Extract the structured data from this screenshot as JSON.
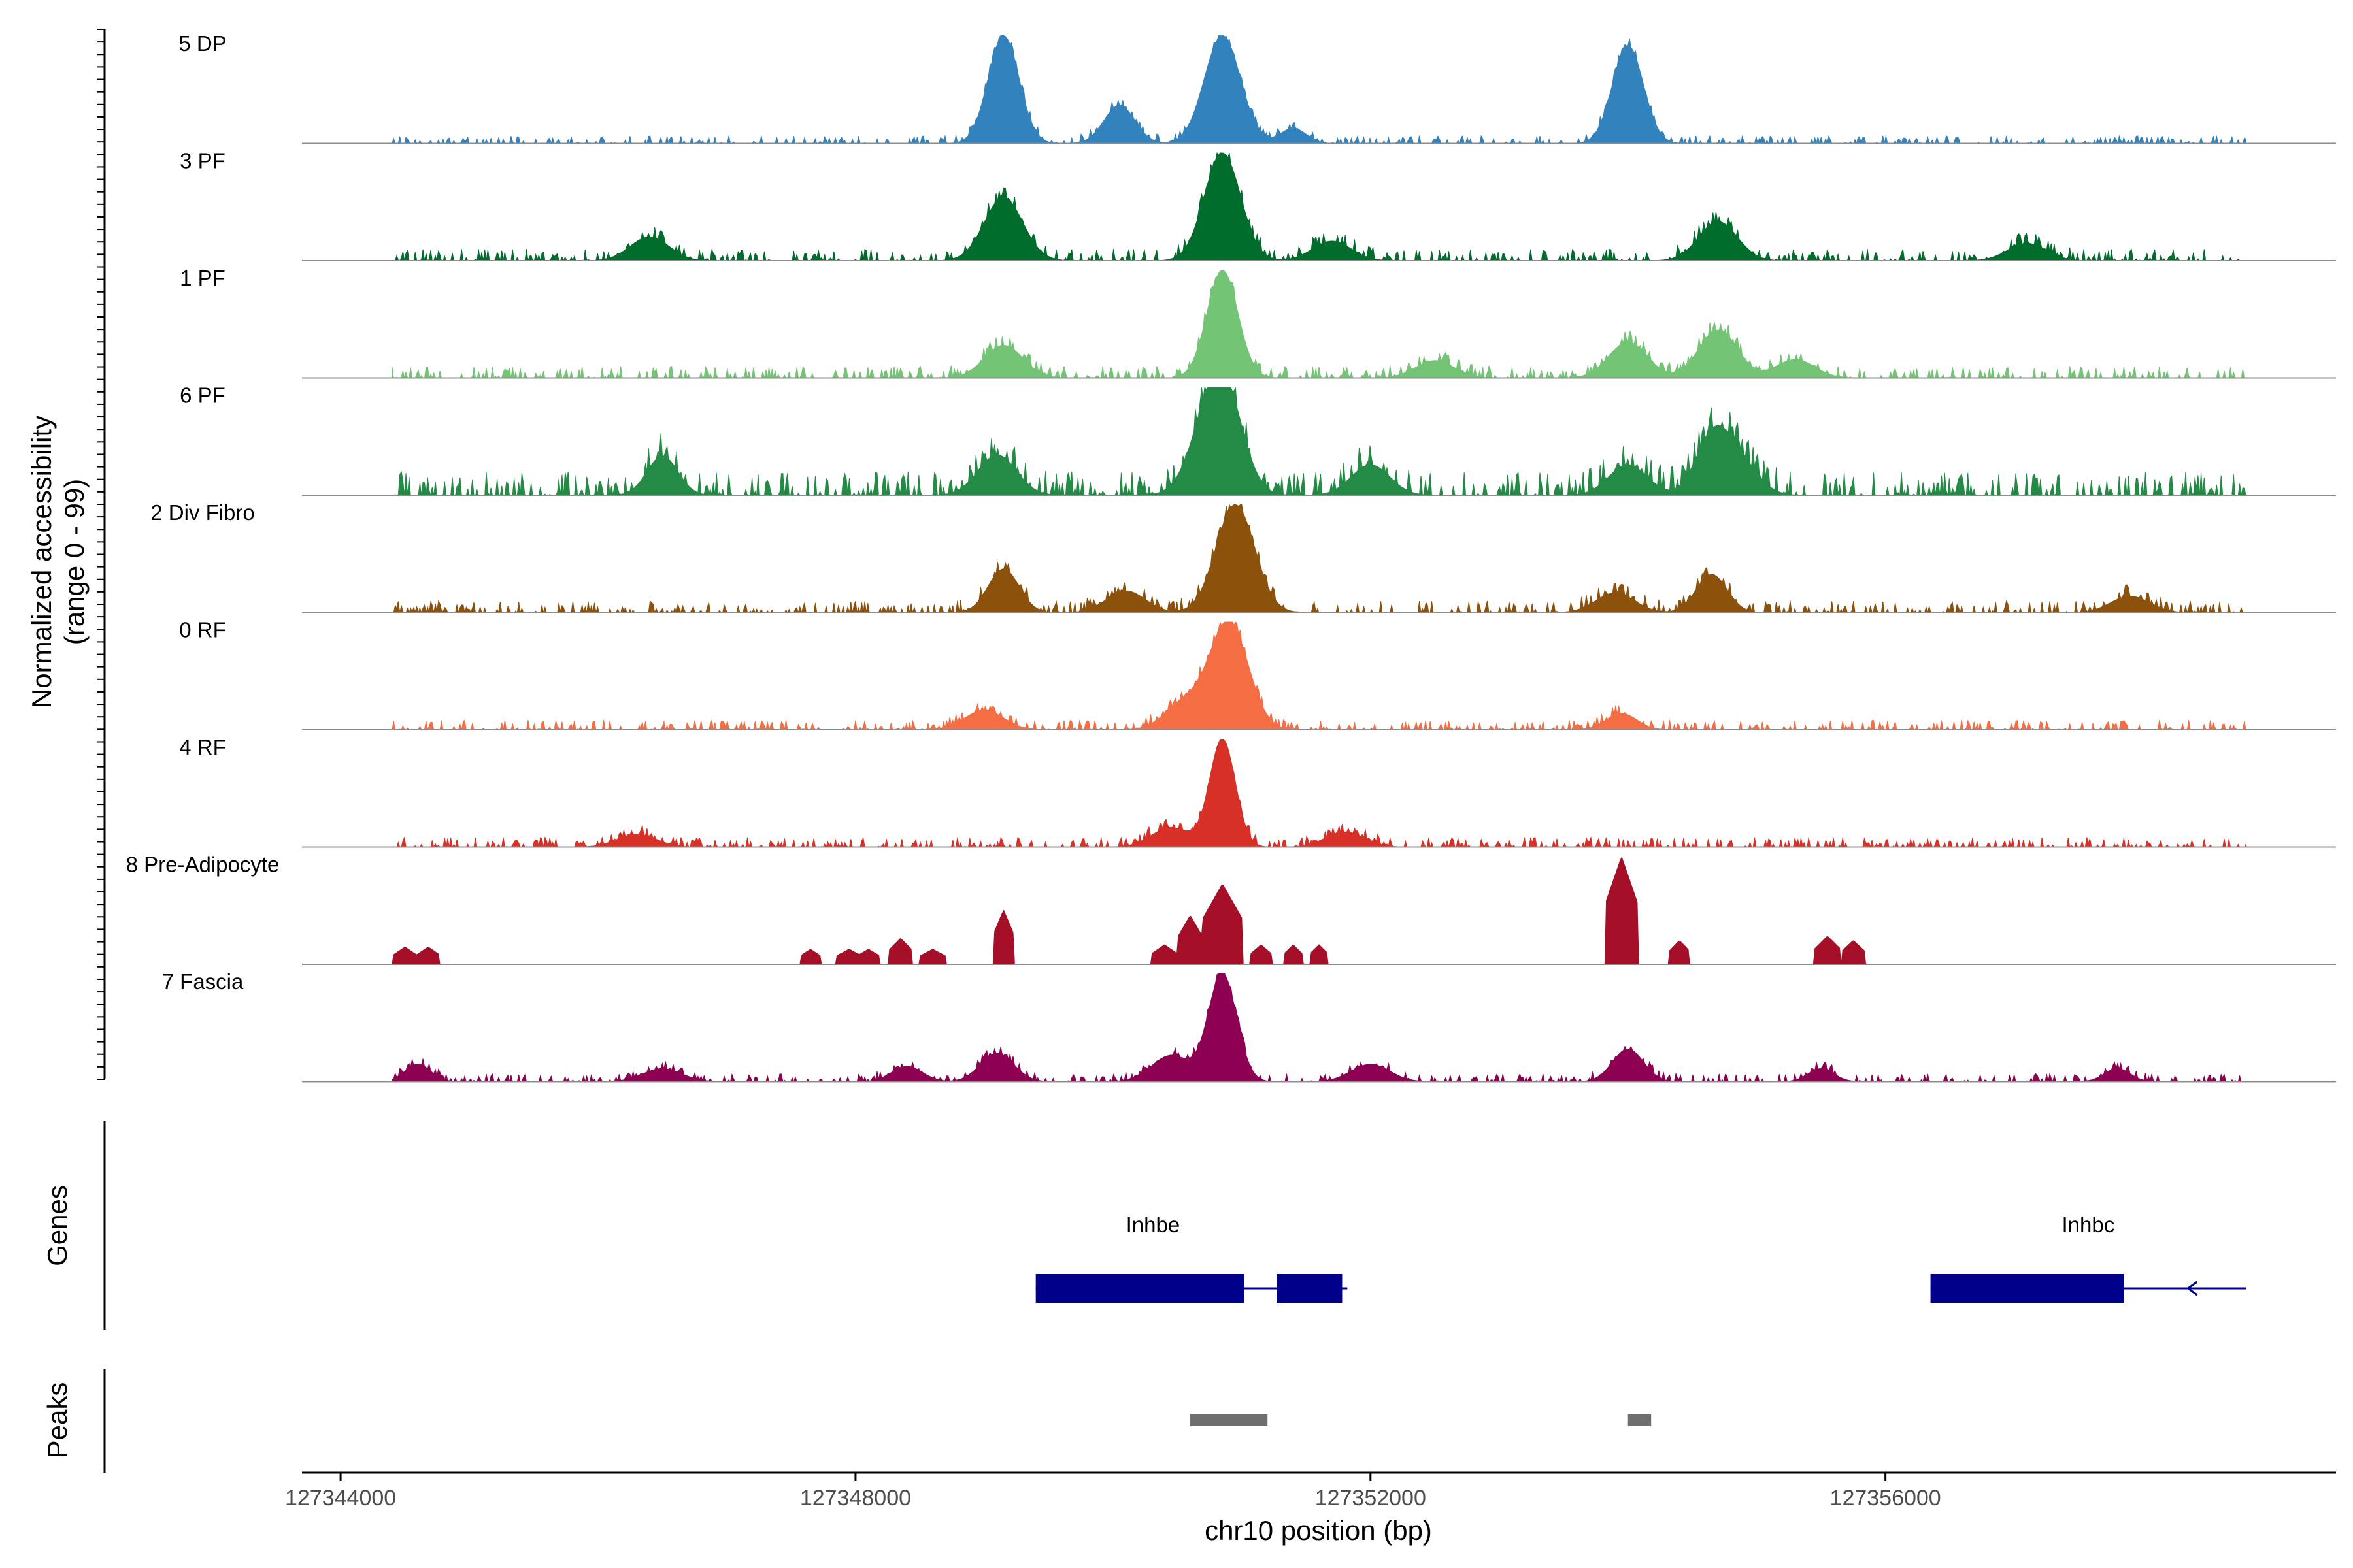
{
  "chart_data": {
    "type": "area",
    "title": "",
    "chromosome": "chr10",
    "xlabel": "chr10 position (bp)",
    "ylabel": "Normalized accessibility",
    "ylabel_sub": "(range 0 - 99)",
    "xlim": [
      127343700,
      127359500
    ],
    "ylim": [
      0,
      99
    ],
    "xticks": [
      127344000,
      127348000,
      127352000,
      127356000
    ],
    "xtick_labels": [
      "127344000",
      "127348000",
      "127352000",
      "127356000"
    ],
    "data_range": [
      127344400,
      127358800
    ],
    "tracks": [
      {
        "name": "5 DP",
        "color": "#3182bd",
        "baseline": 4,
        "blocky": false,
        "peaks": [
          [
            127349150,
            120,
            99
          ],
          [
            127350050,
            120,
            35
          ],
          [
            127350850,
            140,
            99
          ],
          [
            127351400,
            100,
            14
          ],
          [
            127354000,
            120,
            90
          ]
        ]
      },
      {
        "name": "3 PF",
        "color": "#006d2c",
        "baseline": 6,
        "blocky": false,
        "peaks": [
          [
            127346400,
            150,
            22
          ],
          [
            127349150,
            150,
            58
          ],
          [
            127350850,
            140,
            99
          ],
          [
            127351700,
            150,
            18
          ],
          [
            127354700,
            150,
            36
          ],
          [
            127357100,
            150,
            16
          ]
        ]
      },
      {
        "name": "1 PF",
        "color": "#74c476",
        "baseline": 6,
        "blocky": false,
        "peaks": [
          [
            127349150,
            150,
            30
          ],
          [
            127350850,
            120,
            99
          ],
          [
            127352500,
            150,
            16
          ],
          [
            127354000,
            150,
            33
          ],
          [
            127354700,
            150,
            44
          ],
          [
            127355300,
            150,
            17
          ]
        ]
      },
      {
        "name": "6 PF",
        "color": "#238b45",
        "baseline": 12,
        "blocky": false,
        "peaks": [
          [
            127346500,
            120,
            36
          ],
          [
            127349100,
            150,
            37
          ],
          [
            127350700,
            150,
            28
          ],
          [
            127350850,
            150,
            99
          ],
          [
            127352000,
            150,
            28
          ],
          [
            127354000,
            150,
            28
          ],
          [
            127354650,
            130,
            48
          ],
          [
            127354850,
            150,
            32
          ]
        ]
      },
      {
        "name": "2 Div Fibro",
        "color": "#8c510a",
        "baseline": 6,
        "blocky": false,
        "peaks": [
          [
            127349150,
            120,
            40
          ],
          [
            127350100,
            150,
            20
          ],
          [
            127350950,
            150,
            99
          ],
          [
            127353900,
            150,
            18
          ],
          [
            127354650,
            120,
            35
          ],
          [
            127357900,
            150,
            15
          ]
        ]
      },
      {
        "name": "0 RF",
        "color": "#f46d43",
        "baseline": 5,
        "blocky": false,
        "peaks": [
          [
            127349000,
            150,
            18
          ],
          [
            127350550,
            150,
            24
          ],
          [
            127350900,
            150,
            99
          ],
          [
            127353950,
            120,
            15
          ]
        ]
      },
      {
        "name": "4 RF",
        "color": "#d73027",
        "baseline": 5,
        "blocky": false,
        "peaks": [
          [
            127346300,
            150,
            12
          ],
          [
            127350450,
            150,
            18
          ],
          [
            127350850,
            100,
            99
          ],
          [
            127351800,
            150,
            14
          ]
        ]
      },
      {
        "name": "8 Pre-Adipocyte",
        "color": "#a50f28",
        "baseline": 0,
        "blocky": true,
        "peaks": [
          [
            127344500,
            90,
            16
          ],
          [
            127344680,
            90,
            16
          ],
          [
            127347650,
            80,
            14
          ],
          [
            127347950,
            100,
            14
          ],
          [
            127348100,
            90,
            14
          ],
          [
            127348350,
            90,
            24
          ],
          [
            127348600,
            100,
            14
          ],
          [
            127349150,
            80,
            50
          ],
          [
            127350400,
            100,
            18
          ],
          [
            127350600,
            100,
            45
          ],
          [
            127350850,
            160,
            74
          ],
          [
            127351150,
            80,
            18
          ],
          [
            127351400,
            70,
            18
          ],
          [
            127351600,
            70,
            18
          ],
          [
            127353950,
            130,
            99
          ],
          [
            127354400,
            80,
            22
          ],
          [
            127355550,
            100,
            26
          ],
          [
            127355750,
            90,
            22
          ]
        ]
      },
      {
        "name": "7 Fascia",
        "color": "#8e0152",
        "baseline": 4,
        "blocky": false,
        "peaks": [
          [
            127344600,
            100,
            16
          ],
          [
            127346500,
            150,
            12
          ],
          [
            127348400,
            120,
            14
          ],
          [
            127349100,
            130,
            26
          ],
          [
            127350450,
            150,
            24
          ],
          [
            127350850,
            110,
            99
          ],
          [
            127352000,
            150,
            16
          ],
          [
            127354000,
            120,
            30
          ],
          [
            127355500,
            100,
            12
          ],
          [
            127357800,
            100,
            12
          ]
        ]
      }
    ],
    "genes": [
      {
        "name": "Inhbe",
        "line": [
          127349400,
          127351820
        ],
        "exons": [
          [
            127349400,
            127351020
          ],
          [
            127351270,
            127351780
          ]
        ]
      },
      {
        "name": "Inhbc",
        "line": [
          127356350,
          127358800
        ],
        "exons": [
          [
            127356350,
            127357850
          ]
        ],
        "arrow_at": 127358350
      }
    ],
    "peaks_track": [
      [
        127350600,
        127351200
      ],
      [
        127354000,
        127354180
      ]
    ],
    "panel_titles": {
      "genes": "Genes",
      "peaks": "Peaks"
    }
  }
}
